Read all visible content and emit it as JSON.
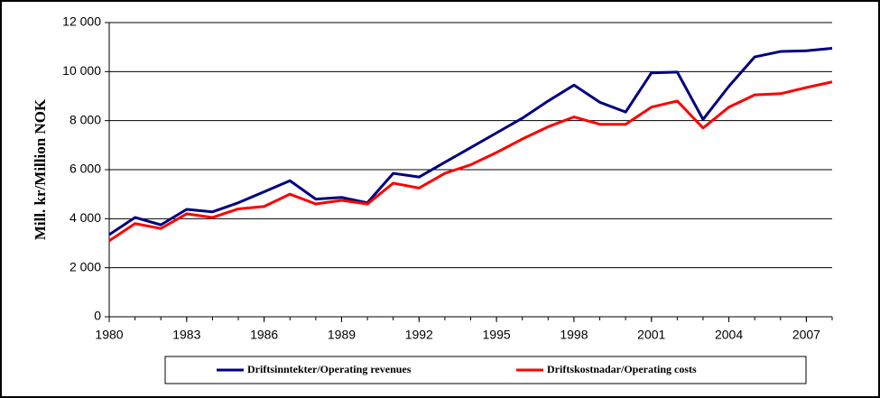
{
  "chart_data": {
    "type": "line",
    "y_label": "Mill. kr/Million NOK",
    "x": [
      1980,
      1981,
      1982,
      1983,
      1984,
      1985,
      1986,
      1987,
      1988,
      1989,
      1990,
      1991,
      1992,
      1993,
      1994,
      1995,
      1996,
      1997,
      1998,
      1999,
      2000,
      2001,
      2002,
      2003,
      2004,
      2005,
      2006,
      2007,
      2008
    ],
    "series": [
      {
        "name": "Driftsinntekter/Operating revenues",
        "color": "#000080",
        "values": [
          3350,
          4050,
          3750,
          4380,
          4280,
          4650,
          5100,
          5550,
          4800,
          4870,
          4650,
          5850,
          5700,
          6300,
          6900,
          7500,
          8100,
          8800,
          9450,
          8750,
          8350,
          9950,
          9980,
          8050,
          9400,
          10600,
          10820,
          10850,
          10950
        ]
      },
      {
        "name": "Driftskostnadar/Operating costs",
        "color": "#ff0000",
        "values": [
          3100,
          3800,
          3600,
          4200,
          4050,
          4400,
          4500,
          5000,
          4600,
          4750,
          4600,
          5450,
          5250,
          5850,
          6200,
          6700,
          7250,
          7750,
          8150,
          7850,
          7850,
          8550,
          8800,
          7700,
          8550,
          9050,
          9100,
          9350,
          9580
        ]
      }
    ],
    "xlim": [
      1980,
      2008
    ],
    "xticks": [
      1980,
      1983,
      1986,
      1989,
      1992,
      1995,
      1998,
      2001,
      2004,
      2007
    ],
    "ylim": [
      0,
      12000
    ],
    "yticks": [
      0,
      {
        "value": 2000,
        "label": "2 000"
      },
      {
        "value": 4000,
        "label": "4 000"
      },
      {
        "value": 6000,
        "label": "6 000"
      },
      {
        "value": 8000,
        "label": "8 000"
      },
      {
        "value": 10000,
        "label": "10 000"
      },
      {
        "value": 12000,
        "label": "12 000"
      }
    ],
    "grid": true,
    "legend": "bottom"
  }
}
